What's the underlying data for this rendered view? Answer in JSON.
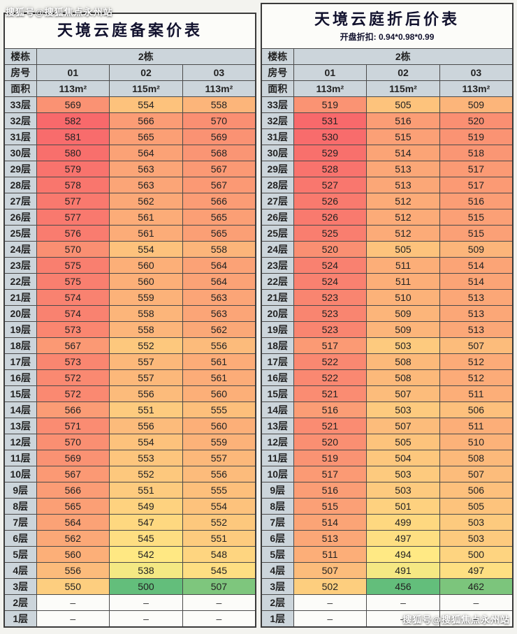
{
  "watermark": "搜狐号@搜狐焦点永州站",
  "empty_marker": "–",
  "colors": {
    "scale": {
      "low": "#63BE7B",
      "mid": "#FFEB84",
      "high": "#F8696B"
    },
    "header_bg": "#ccd5db",
    "border": "#4a4a4a",
    "title_text": "#12122e"
  },
  "floors": [
    "33层",
    "32层",
    "31层",
    "30层",
    "29层",
    "28层",
    "27层",
    "26层",
    "25层",
    "24层",
    "23层",
    "22层",
    "21层",
    "20层",
    "19层",
    "18层",
    "17层",
    "16层",
    "15层",
    "14层",
    "13层",
    "12层",
    "11层",
    "10层",
    "9层",
    "8层",
    "7层",
    "6层",
    "5层",
    "4层",
    "3层",
    "2层",
    "1层"
  ],
  "tables": [
    {
      "title": "天境云庭备案价表",
      "subtitle": "",
      "building_label": "楼栋",
      "building_value": "2栋",
      "room_label": "房号",
      "rooms": [
        "01",
        "02",
        "03"
      ],
      "area_label": "面积",
      "areas": [
        "113m²",
        "115m²",
        "113m²"
      ],
      "values": [
        [
          569,
          554,
          558
        ],
        [
          582,
          566,
          570
        ],
        [
          581,
          565,
          569
        ],
        [
          580,
          564,
          568
        ],
        [
          579,
          563,
          567
        ],
        [
          578,
          563,
          567
        ],
        [
          577,
          562,
          566
        ],
        [
          577,
          561,
          565
        ],
        [
          576,
          561,
          565
        ],
        [
          570,
          554,
          558
        ],
        [
          575,
          560,
          564
        ],
        [
          575,
          560,
          564
        ],
        [
          574,
          559,
          563
        ],
        [
          574,
          558,
          563
        ],
        [
          573,
          558,
          562
        ],
        [
          567,
          552,
          556
        ],
        [
          573,
          557,
          561
        ],
        [
          572,
          557,
          561
        ],
        [
          572,
          556,
          560
        ],
        [
          566,
          551,
          555
        ],
        [
          571,
          556,
          560
        ],
        [
          570,
          554,
          559
        ],
        [
          569,
          553,
          557
        ],
        [
          567,
          552,
          556
        ],
        [
          566,
          551,
          555
        ],
        [
          565,
          549,
          554
        ],
        [
          564,
          547,
          552
        ],
        [
          562,
          545,
          551
        ],
        [
          560,
          542,
          548
        ],
        [
          556,
          538,
          545
        ],
        [
          550,
          500,
          507
        ],
        [
          null,
          null,
          null
        ],
        [
          null,
          null,
          null
        ]
      ]
    },
    {
      "title": "天境云庭折后价表",
      "subtitle": "开盘折扣: 0.94*0.98*0.99",
      "building_label": "楼栋",
      "building_value": "2栋",
      "room_label": "房号",
      "rooms": [
        "01",
        "02",
        "03"
      ],
      "area_label": "面积",
      "areas": [
        "113m²",
        "115m²",
        "113m²"
      ],
      "values": [
        [
          519,
          505,
          509
        ],
        [
          531,
          516,
          520
        ],
        [
          530,
          515,
          519
        ],
        [
          529,
          514,
          518
        ],
        [
          528,
          513,
          517
        ],
        [
          527,
          513,
          517
        ],
        [
          526,
          512,
          516
        ],
        [
          526,
          512,
          515
        ],
        [
          525,
          512,
          515
        ],
        [
          520,
          505,
          509
        ],
        [
          524,
          511,
          514
        ],
        [
          524,
          511,
          514
        ],
        [
          523,
          510,
          513
        ],
        [
          523,
          509,
          513
        ],
        [
          523,
          509,
          513
        ],
        [
          517,
          503,
          507
        ],
        [
          522,
          508,
          512
        ],
        [
          522,
          508,
          512
        ],
        [
          521,
          507,
          511
        ],
        [
          516,
          503,
          506
        ],
        [
          521,
          507,
          511
        ],
        [
          520,
          505,
          510
        ],
        [
          519,
          504,
          508
        ],
        [
          517,
          503,
          507
        ],
        [
          516,
          503,
          506
        ],
        [
          515,
          501,
          505
        ],
        [
          514,
          499,
          503
        ],
        [
          513,
          497,
          503
        ],
        [
          511,
          494,
          500
        ],
        [
          507,
          491,
          497
        ],
        [
          502,
          456,
          462
        ],
        [
          null,
          null,
          null
        ],
        [
          null,
          null,
          null
        ]
      ]
    }
  ]
}
